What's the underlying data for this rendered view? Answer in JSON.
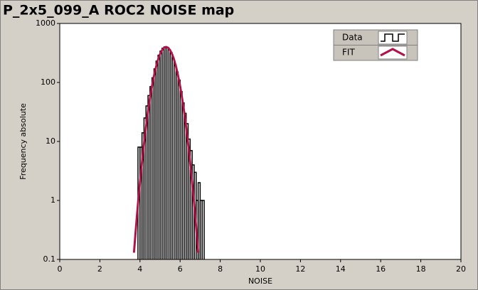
{
  "chart_data": {
    "type": "histogram",
    "title": "P_2x5_099_A ROC2 NOISE map",
    "xlabel": "NOISE",
    "ylabel": "Frequency absolute",
    "bins": [
      3.9,
      4.0,
      4.1,
      4.2,
      4.3,
      4.4,
      4.5,
      4.6,
      4.7,
      4.8,
      4.9,
      5.0,
      5.1,
      5.2,
      5.3,
      5.4,
      5.5,
      5.6,
      5.7,
      5.8,
      5.9,
      6.0,
      6.1,
      6.2,
      6.3,
      6.4,
      6.5,
      6.6,
      6.7,
      6.8,
      6.9,
      7.0,
      7.1,
      7.2
    ],
    "series": [
      {
        "name": "Data",
        "color": "#000000",
        "values": [
          8,
          8,
          14,
          25,
          40,
          60,
          85,
          120,
          170,
          230,
          290,
          340,
          380,
          400,
          390,
          360,
          320,
          260,
          200,
          150,
          110,
          70,
          45,
          30,
          20,
          11,
          7,
          4,
          3,
          1,
          2,
          1,
          1
        ]
      },
      {
        "name": "FIT",
        "type": "line",
        "color": "#b0124a",
        "x": [
          3.7,
          3.8,
          3.9,
          4.0,
          4.1,
          4.2,
          4.3,
          4.4,
          4.5,
          4.6,
          4.7,
          4.8,
          4.9,
          5.0,
          5.1,
          5.2,
          5.3,
          5.4,
          5.5,
          5.6,
          5.7,
          5.8,
          5.9,
          6.0,
          6.1,
          6.2,
          6.3,
          6.4,
          6.5,
          6.6,
          6.7,
          6.8,
          6.9
        ],
        "values": [
          0.13,
          0.35,
          0.88,
          2.0,
          4.4,
          9.1,
          17.6,
          32,
          54,
          87,
          130,
          183,
          243,
          302,
          353,
          388,
          400,
          388,
          353,
          302,
          243,
          183,
          130,
          87,
          54,
          32,
          17.6,
          9.1,
          4.4,
          2.0,
          0.88,
          0.35,
          0.13
        ]
      }
    ],
    "xlim": [
      0,
      20
    ],
    "ylim": [
      0.1,
      1000
    ],
    "xticks": [
      0,
      2,
      4,
      6,
      8,
      10,
      12,
      14,
      16,
      18,
      20
    ],
    "yticks": [
      0.1,
      1,
      10,
      100,
      1000
    ],
    "log_y": true,
    "legend": "upper right"
  }
}
